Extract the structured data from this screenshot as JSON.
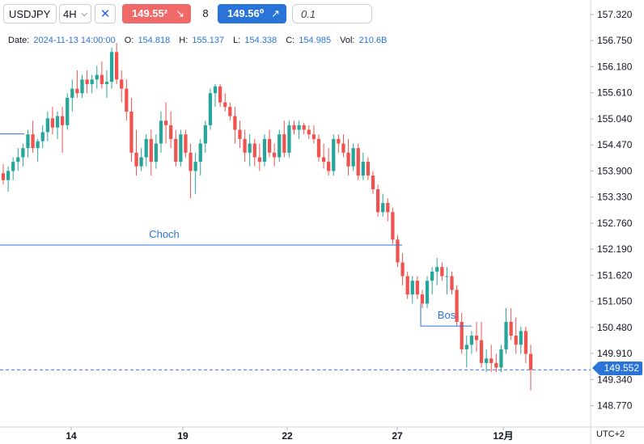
{
  "toolbar": {
    "symbol": "USDJPY",
    "interval": "4H",
    "sell_price": "149.55²",
    "quantity": "8",
    "buy_price": "149.56⁰",
    "lot_value": "0.1"
  },
  "ohlc": {
    "date_label": "Date:",
    "date": "2024-11-13 14:00:00",
    "open_label": "O:",
    "open": "154.818",
    "high_label": "H:",
    "high": "155.137",
    "low_label": "L:",
    "low": "154.338",
    "close_label": "C:",
    "close": "154.985",
    "vol_label": "Vol:",
    "vol": "210.6B"
  },
  "current_price": "149.552",
  "timezone": "UTC+2",
  "colors": {
    "up": "#26a69a",
    "down": "#ef5350",
    "accent": "#2a73d9",
    "line": "#2a73d9"
  },
  "chart_data": {
    "type": "candlestick",
    "symbol": "USDJPY",
    "interval": "4H",
    "y_ticks": [
      "157.320",
      "156.750",
      "156.180",
      "155.610",
      "155.040",
      "154.470",
      "153.900",
      "153.330",
      "152.760",
      "152.190",
      "151.620",
      "151.050",
      "150.480",
      "149.910",
      "149.340",
      "148.770"
    ],
    "x_ticks": [
      "14",
      "19",
      "22",
      "27",
      "12月"
    ],
    "ylim": [
      148.5,
      157.6
    ],
    "annotations": [
      {
        "text": "Choch",
        "price": 152.28
      },
      {
        "text": "Bos",
        "price": 150.51
      },
      {
        "text": "",
        "price": 154.71
      }
    ],
    "current_price_line": 149.552,
    "candles": [
      [
        153.85,
        154.05,
        153.6,
        153.7
      ],
      [
        153.7,
        154.0,
        153.45,
        153.9
      ],
      [
        153.9,
        154.2,
        153.7,
        154.1
      ],
      [
        154.1,
        154.4,
        153.9,
        154.2
      ],
      [
        154.2,
        154.5,
        154.0,
        154.4
      ],
      [
        154.4,
        154.8,
        154.2,
        154.7
      ],
      [
        154.7,
        155.0,
        154.3,
        154.4
      ],
      [
        154.4,
        154.6,
        154.1,
        154.55
      ],
      [
        154.55,
        154.9,
        154.4,
        154.75
      ],
      [
        154.75,
        155.2,
        154.55,
        155.05
      ],
      [
        155.05,
        155.3,
        154.7,
        154.85
      ],
      [
        154.85,
        155.2,
        154.6,
        155.1
      ],
      [
        155.1,
        155.3,
        154.3,
        154.9
      ],
      [
        154.9,
        155.6,
        154.8,
        155.5
      ],
      [
        155.5,
        155.9,
        155.2,
        155.7
      ],
      [
        155.7,
        156.1,
        155.5,
        155.6
      ],
      [
        155.6,
        156.0,
        155.5,
        155.9
      ],
      [
        155.9,
        156.1,
        155.6,
        155.8
      ],
      [
        155.8,
        156.0,
        155.6,
        155.9
      ],
      [
        155.9,
        156.2,
        155.7,
        156.0
      ],
      [
        156.0,
        156.3,
        155.7,
        155.8
      ],
      [
        155.8,
        156.1,
        155.5,
        155.85
      ],
      [
        155.85,
        156.6,
        155.7,
        156.5
      ],
      [
        156.5,
        156.7,
        155.8,
        155.9
      ],
      [
        155.9,
        156.1,
        155.4,
        155.7
      ],
      [
        155.7,
        155.9,
        155.0,
        155.2
      ],
      [
        155.2,
        155.5,
        154.1,
        154.3
      ],
      [
        154.3,
        154.8,
        153.8,
        154.0
      ],
      [
        154.0,
        154.4,
        153.9,
        154.2
      ],
      [
        154.2,
        154.7,
        154.0,
        154.6
      ],
      [
        154.6,
        154.8,
        153.8,
        154.1
      ],
      [
        154.1,
        154.7,
        153.95,
        154.5
      ],
      [
        154.5,
        155.2,
        154.3,
        155.0
      ],
      [
        155.0,
        155.4,
        154.5,
        154.9
      ],
      [
        154.9,
        155.2,
        154.4,
        154.6
      ],
      [
        154.6,
        154.8,
        154.0,
        154.1
      ],
      [
        154.1,
        154.8,
        154.0,
        154.7
      ],
      [
        154.7,
        154.8,
        154.2,
        154.3
      ],
      [
        154.3,
        154.5,
        153.3,
        153.9
      ],
      [
        153.9,
        154.3,
        153.4,
        154.1
      ],
      [
        154.1,
        154.6,
        153.8,
        154.5
      ],
      [
        154.5,
        155.0,
        154.3,
        154.9
      ],
      [
        154.9,
        155.7,
        154.8,
        155.6
      ],
      [
        155.6,
        155.8,
        155.3,
        155.75
      ],
      [
        155.75,
        155.8,
        155.3,
        155.4
      ],
      [
        155.4,
        155.6,
        155.2,
        155.3
      ],
      [
        155.3,
        155.4,
        155.0,
        155.1
      ],
      [
        155.1,
        155.3,
        154.5,
        154.8
      ],
      [
        154.8,
        155.0,
        154.4,
        154.6
      ],
      [
        154.6,
        154.8,
        154.1,
        154.3
      ],
      [
        154.3,
        154.7,
        154.0,
        154.5
      ],
      [
        154.5,
        154.6,
        154.0,
        154.2
      ],
      [
        154.2,
        154.5,
        153.9,
        154.1
      ],
      [
        154.1,
        154.7,
        154.0,
        154.6
      ],
      [
        154.6,
        154.8,
        154.2,
        154.3
      ],
      [
        154.3,
        154.5,
        154.0,
        154.2
      ],
      [
        154.2,
        154.8,
        154.1,
        154.7
      ],
      [
        154.7,
        155.0,
        154.2,
        154.3
      ],
      [
        154.3,
        155.0,
        154.2,
        154.9
      ],
      [
        154.9,
        155.0,
        154.7,
        154.8
      ],
      [
        154.8,
        155.0,
        154.6,
        154.9
      ],
      [
        154.9,
        154.95,
        154.7,
        154.8
      ],
      [
        154.8,
        154.9,
        154.6,
        154.7
      ],
      [
        154.7,
        154.9,
        154.5,
        154.6
      ],
      [
        154.6,
        154.7,
        154.1,
        154.2
      ],
      [
        154.2,
        154.5,
        153.95,
        154.1
      ],
      [
        154.1,
        154.4,
        153.8,
        153.9
      ],
      [
        153.9,
        154.7,
        153.8,
        154.6
      ],
      [
        154.6,
        154.7,
        154.3,
        154.5
      ],
      [
        154.5,
        154.7,
        154.2,
        154.3
      ],
      [
        154.3,
        154.6,
        153.8,
        154.0
      ],
      [
        154.0,
        154.5,
        153.9,
        154.4
      ],
      [
        154.4,
        154.5,
        153.7,
        153.8
      ],
      [
        153.8,
        154.3,
        153.7,
        154.1
      ],
      [
        154.1,
        154.2,
        153.7,
        153.8
      ],
      [
        153.8,
        153.9,
        153.4,
        153.5
      ],
      [
        153.5,
        153.6,
        152.9,
        153.0
      ],
      [
        153.0,
        153.4,
        152.9,
        153.2
      ],
      [
        153.2,
        153.3,
        152.8,
        153.0
      ],
      [
        153.0,
        153.1,
        152.3,
        152.4
      ],
      [
        152.4,
        152.5,
        151.8,
        151.9
      ],
      [
        151.9,
        152.1,
        151.4,
        151.6
      ],
      [
        151.6,
        151.7,
        151.1,
        151.2
      ],
      [
        151.2,
        151.6,
        151.0,
        151.5
      ],
      [
        151.5,
        151.6,
        151.1,
        151.2
      ],
      [
        151.2,
        151.3,
        150.9,
        151.0
      ],
      [
        151.0,
        151.6,
        150.9,
        151.5
      ],
      [
        151.5,
        151.8,
        151.2,
        151.7
      ],
      [
        151.7,
        152.0,
        151.4,
        151.8
      ],
      [
        151.8,
        151.9,
        151.5,
        151.6
      ],
      [
        151.6,
        151.8,
        151.2,
        151.6
      ],
      [
        151.6,
        151.7,
        151.2,
        151.3
      ],
      [
        151.3,
        151.4,
        150.5,
        150.6
      ],
      [
        150.6,
        150.8,
        149.9,
        150.0
      ],
      [
        150.0,
        150.3,
        149.6,
        150.1
      ],
      [
        150.1,
        150.4,
        149.9,
        150.3
      ],
      [
        150.3,
        150.6,
        149.95,
        150.2
      ],
      [
        150.2,
        150.6,
        149.6,
        149.7
      ],
      [
        149.7,
        150.0,
        149.5,
        149.8
      ],
      [
        149.8,
        150.1,
        149.5,
        149.7
      ],
      [
        149.7,
        149.9,
        149.5,
        149.6
      ],
      [
        149.6,
        150.1,
        149.5,
        150.0
      ],
      [
        150.0,
        150.9,
        149.9,
        150.6
      ],
      [
        150.6,
        150.9,
        150.2,
        150.3
      ],
      [
        150.3,
        150.7,
        149.9,
        150.1
      ],
      [
        150.1,
        150.5,
        149.9,
        150.4
      ],
      [
        150.4,
        150.5,
        149.7,
        149.9
      ],
      [
        149.9,
        150.1,
        149.1,
        149.55
      ]
    ]
  }
}
